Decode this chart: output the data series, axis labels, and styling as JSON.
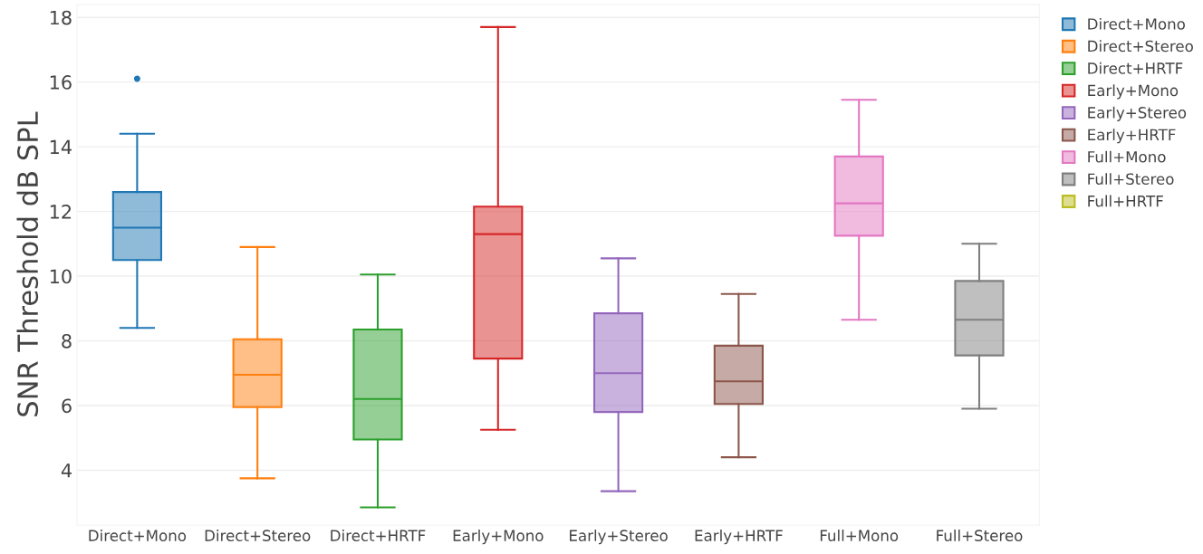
{
  "chart_data": {
    "type": "box",
    "ylabel": "SNR Threshold dB SPL",
    "categories": [
      "Direct+Mono",
      "Direct+Stereo",
      "Direct+HRTF",
      "Early+Mono",
      "Early+Stereo",
      "Early+HRTF",
      "Full+Mono",
      "Full+Stereo"
    ],
    "ylim": [
      2.3,
      18.4
    ],
    "yticks": [
      4,
      6,
      8,
      10,
      12,
      14,
      16,
      18
    ],
    "grid": "y",
    "legend": "top right",
    "series": [
      {
        "name": "Direct+Mono",
        "color": "#1f77b4",
        "boxes": [
          {
            "low": 8.4,
            "q1": 10.5,
            "median": 11.5,
            "q3": 12.6,
            "high": 14.4,
            "outliers": [
              16.1
            ]
          },
          null,
          null,
          null,
          null,
          null,
          null,
          null
        ]
      },
      {
        "name": "Direct+Stereo",
        "color": "#ff7f0e",
        "boxes": [
          null,
          {
            "low": 3.75,
            "q1": 5.95,
            "median": 6.95,
            "q3": 8.05,
            "high": 10.9
          },
          null,
          null,
          null,
          null,
          null,
          null
        ]
      },
      {
        "name": "Direct+HRTF",
        "color": "#2ca02c",
        "boxes": [
          null,
          null,
          {
            "low": 2.85,
            "q1": 4.95,
            "median": 6.2,
            "q3": 8.35,
            "high": 10.05
          },
          null,
          null,
          null,
          null,
          null
        ]
      },
      {
        "name": "Early+Mono",
        "color": "#d62728",
        "boxes": [
          null,
          null,
          null,
          {
            "low": 5.25,
            "q1": 7.45,
            "median": 11.3,
            "q3": 12.15,
            "high": 17.7
          },
          null,
          null,
          null,
          null
        ]
      },
      {
        "name": "Early+Stereo",
        "color": "#9467bd",
        "boxes": [
          null,
          null,
          null,
          null,
          {
            "low": 3.35,
            "q1": 5.8,
            "median": 7.0,
            "q3": 8.85,
            "high": 10.55
          },
          null,
          null,
          null
        ]
      },
      {
        "name": "Early+HRTF",
        "color": "#8c564b",
        "boxes": [
          null,
          null,
          null,
          null,
          null,
          {
            "low": 4.4,
            "q1": 6.05,
            "median": 6.75,
            "q3": 7.85,
            "high": 9.45
          },
          null,
          null
        ]
      },
      {
        "name": "Full+Mono",
        "color": "#e377c2",
        "boxes": [
          null,
          null,
          null,
          null,
          null,
          null,
          {
            "low": 8.65,
            "q1": 11.25,
            "median": 12.25,
            "q3": 13.7,
            "high": 15.45
          },
          null
        ]
      },
      {
        "name": "Full+Stereo",
        "color": "#7f7f7f",
        "boxes": [
          null,
          null,
          null,
          null,
          null,
          null,
          null,
          {
            "low": 5.9,
            "q1": 7.55,
            "median": 8.65,
            "q3": 9.85,
            "high": 11.0
          }
        ]
      },
      {
        "name": "Full+HRTF",
        "color": "#bcbd22",
        "boxes": [
          null,
          null,
          null,
          null,
          null,
          null,
          null,
          null
        ]
      }
    ]
  }
}
